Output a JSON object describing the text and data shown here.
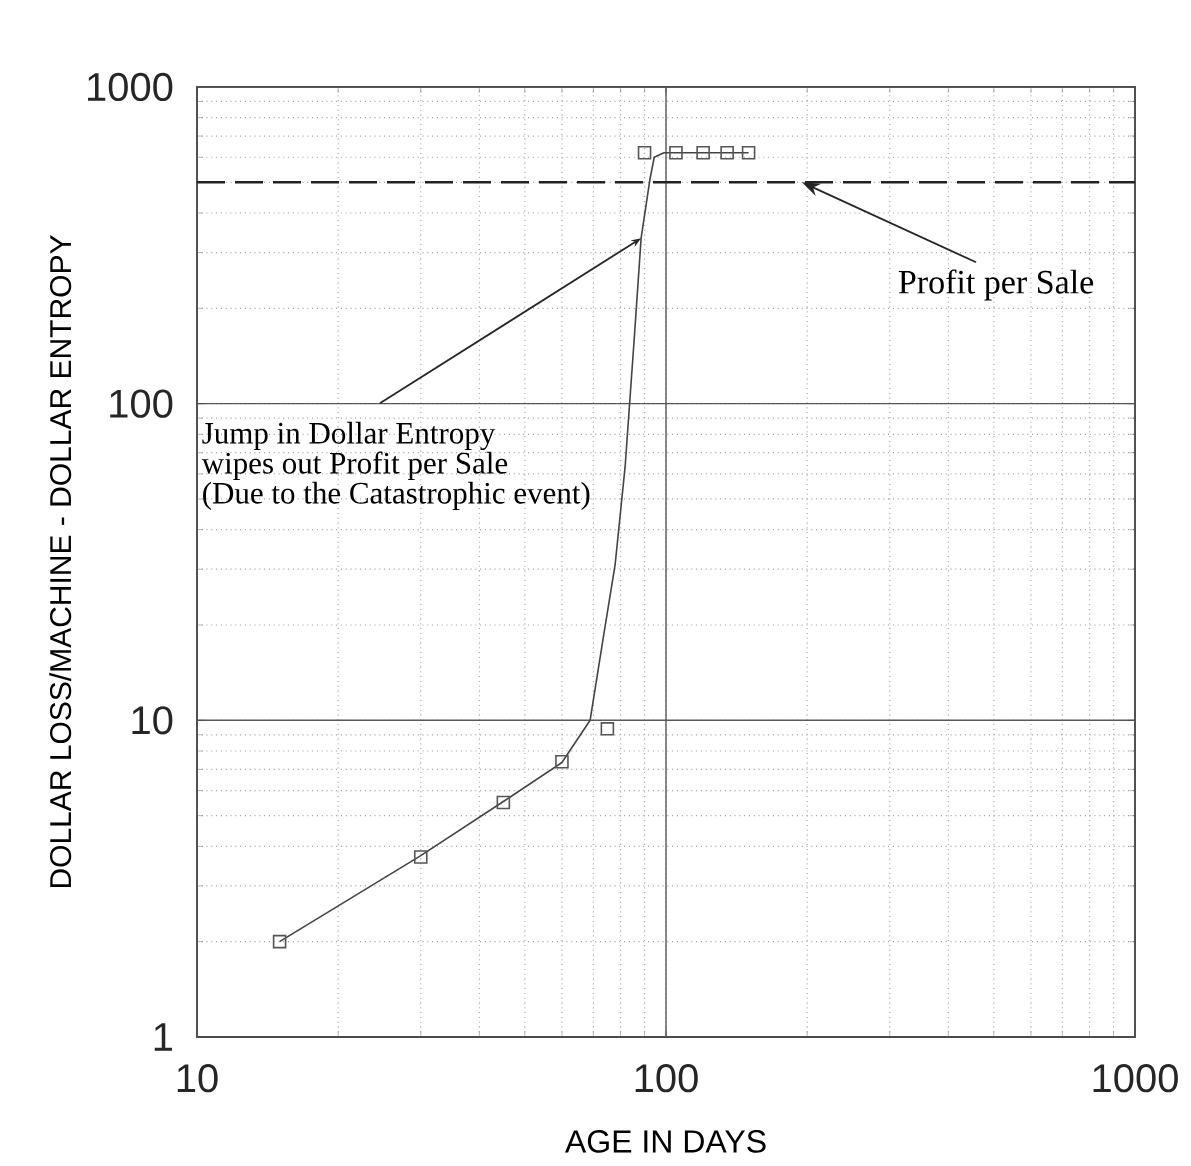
{
  "chart_data": {
    "type": "line",
    "xlabel": "AGE IN DAYS",
    "ylabel": "DOLLAR LOSS/MACHINE - DOLLAR ENTROPY",
    "log": "xy",
    "grid": true,
    "xlim": [
      10,
      1000
    ],
    "xticks": [
      10,
      100,
      1000
    ],
    "ylim": [
      1,
      1000
    ],
    "yticks": [
      1,
      10,
      100,
      1000
    ],
    "series": [
      {
        "marker": "none",
        "line_style": "solid",
        "color": "#444444",
        "x": [
          15,
          30,
          45,
          60,
          68.9,
          73.4,
          77.9,
          81.8,
          85.5,
          88.5,
          92.5,
          94.4,
          99,
          105,
          120,
          135,
          150
        ],
        "values": [
          2,
          3.74,
          5.54,
          7.36,
          10,
          18,
          31,
          63,
          158,
          333,
          515,
          600,
          620,
          620,
          620,
          620,
          620
        ]
      },
      {
        "type": "scatter",
        "marker": "square",
        "color": "#555555",
        "x": [
          15,
          30,
          45,
          60,
          75,
          90,
          105,
          120,
          135,
          150
        ],
        "values": [
          2,
          3.7,
          5.5,
          7.4,
          9.4,
          620,
          620,
          620,
          620,
          620
        ]
      }
    ],
    "ref_lines": [
      {
        "axis": "y",
        "value": 500,
        "label": "Profit per Sale",
        "line_style": "dashed",
        "color": "#222222"
      }
    ],
    "annotations": [
      {
        "text": "Jump in Dollar Entropy",
        "x": 88.5,
        "y": 333
      },
      "wipes out Profit per Sale",
      "(Due to the Catastrophic event)"
    ]
  }
}
